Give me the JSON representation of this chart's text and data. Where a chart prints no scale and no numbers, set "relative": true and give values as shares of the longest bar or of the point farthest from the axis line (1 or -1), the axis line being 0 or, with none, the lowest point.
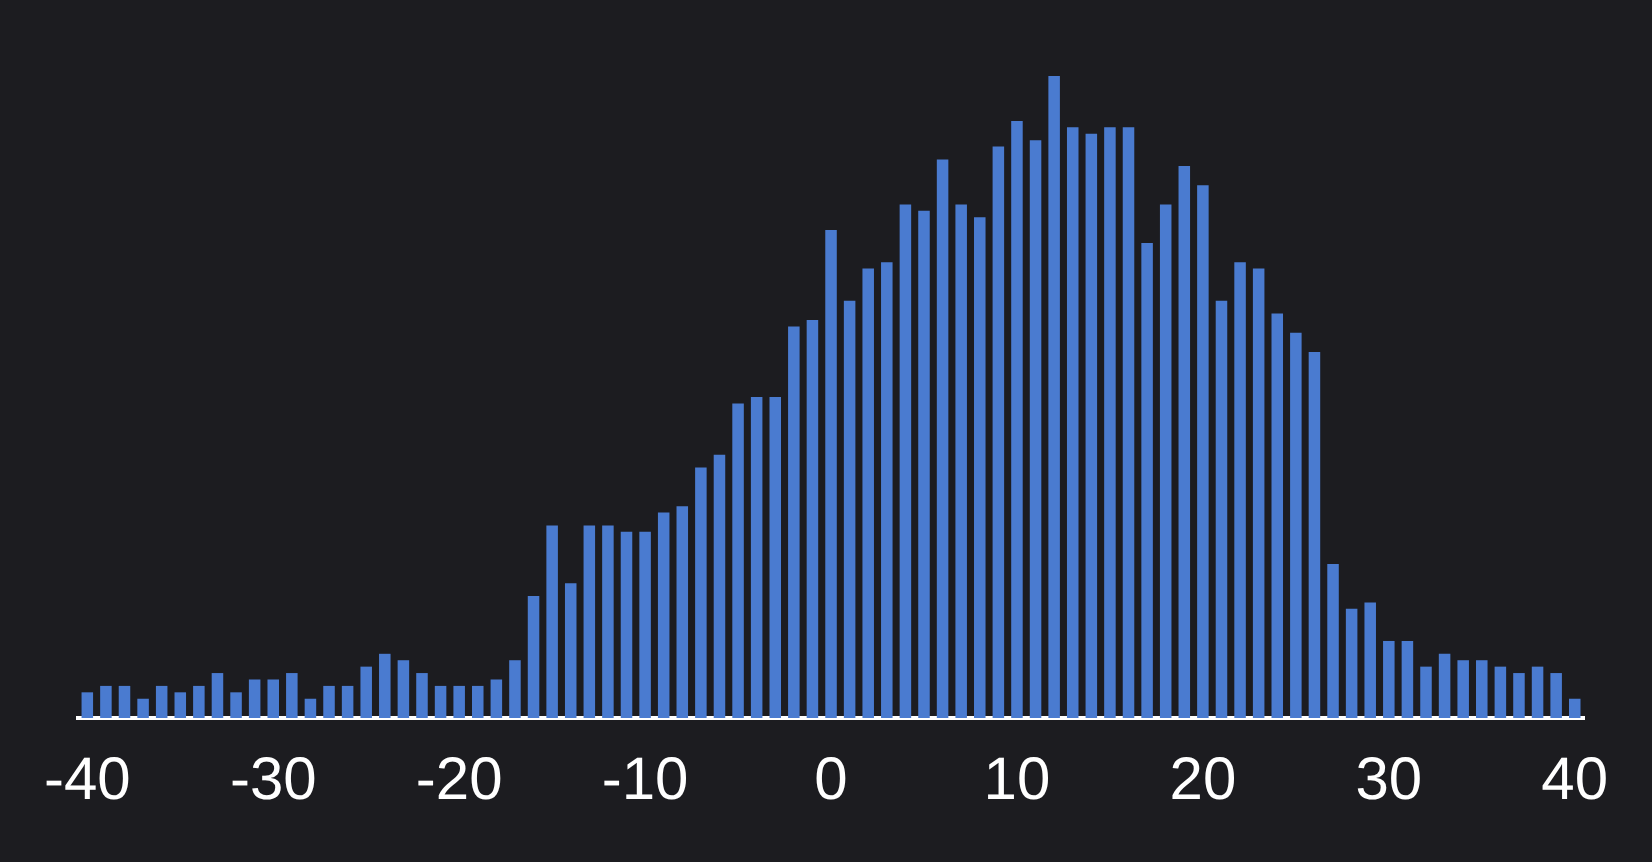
{
  "chart_data": {
    "type": "bar",
    "relative": true,
    "color": "#4a7bd0",
    "x": [
      -40,
      -39,
      -38,
      -37,
      -36,
      -35,
      -34,
      -33,
      -32,
      -31,
      -30,
      -29,
      -28,
      -27,
      -26,
      -25,
      -24,
      -23,
      -22,
      -21,
      -20,
      -19,
      -18,
      -17,
      -16,
      -15,
      -14,
      -13,
      -12,
      -11,
      -10,
      -9,
      -8,
      -7,
      -6,
      -5,
      -4,
      -3,
      -2,
      -1,
      0,
      1,
      2,
      3,
      4,
      5,
      6,
      7,
      8,
      9,
      10,
      11,
      12,
      13,
      14,
      15,
      16,
      17,
      18,
      19,
      20,
      21,
      22,
      23,
      24,
      25,
      26,
      27,
      28,
      29,
      30,
      31,
      32,
      33,
      34,
      35,
      36,
      37,
      38,
      39,
      40
    ],
    "values": [
      0.04,
      0.05,
      0.05,
      0.03,
      0.05,
      0.04,
      0.05,
      0.07,
      0.04,
      0.06,
      0.06,
      0.07,
      0.03,
      0.05,
      0.05,
      0.08,
      0.1,
      0.09,
      0.07,
      0.05,
      0.05,
      0.05,
      0.06,
      0.09,
      0.19,
      0.3,
      0.21,
      0.3,
      0.3,
      0.29,
      0.29,
      0.32,
      0.33,
      0.39,
      0.41,
      0.49,
      0.5,
      0.5,
      0.61,
      0.62,
      0.76,
      0.65,
      0.7,
      0.71,
      0.8,
      0.79,
      0.87,
      0.8,
      0.78,
      0.89,
      0.93,
      0.9,
      1,
      0.92,
      0.91,
      0.92,
      0.92,
      0.74,
      0.8,
      0.86,
      0.83,
      0.65,
      0.71,
      0.7,
      0.63,
      0.6,
      0.57,
      0.24,
      0.17,
      0.18,
      0.12,
      0.12,
      0.08,
      0.1,
      0.09,
      0.09,
      0.08,
      0.07,
      0.08,
      0.07,
      0.03
    ],
    "xlim": [
      -40.5,
      40.5
    ],
    "xticks": [
      -40,
      -30,
      -20,
      -10,
      0,
      10,
      20,
      30,
      40
    ],
    "tick_labels": "x"
  }
}
